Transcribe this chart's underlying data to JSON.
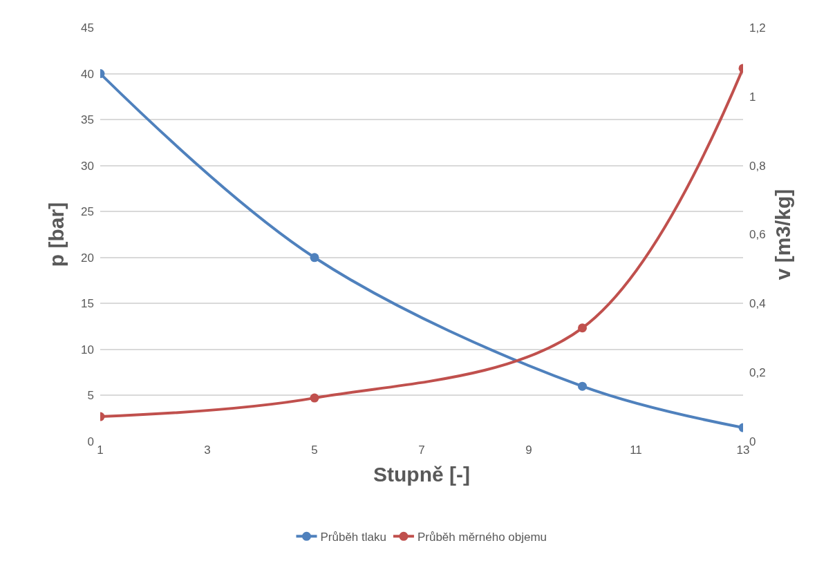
{
  "chart_data": {
    "type": "line",
    "xlabel": "Stupně [-]",
    "ylabel": "p [bar]",
    "y2label": "v [m3/kg]",
    "x": [
      1,
      5,
      10,
      13
    ],
    "series": [
      {
        "name": "Průběh tlaku",
        "color": "#4f81bd",
        "values": [
          40,
          20,
          6,
          1.5
        ]
      },
      {
        "name": "Průběh měrného objemu",
        "color": "#c0504d",
        "values": [
          0.072,
          0.126,
          0.329,
          1.082
        ],
        "axis": "y2"
      }
    ],
    "xlim": [
      1,
      13
    ],
    "xticks": [
      1,
      3,
      5,
      7,
      9,
      11,
      13
    ],
    "ylim": [
      0,
      45
    ],
    "yticks": [
      0,
      5,
      10,
      15,
      20,
      25,
      30,
      35,
      40,
      45
    ],
    "y2lim": [
      0,
      1.2
    ],
    "y2ticks": [
      0,
      {
        "value": 0.2,
        "label": "0,2"
      },
      {
        "value": 0.4,
        "label": "0,4"
      },
      {
        "value": 0.6,
        "label": "0,6"
      },
      {
        "value": 0.8,
        "label": "0,8"
      },
      1,
      {
        "value": 1.2,
        "label": "1,2"
      }
    ],
    "grid": "y",
    "legend": "bottom",
    "marker": "circle",
    "line_style": "solid"
  }
}
